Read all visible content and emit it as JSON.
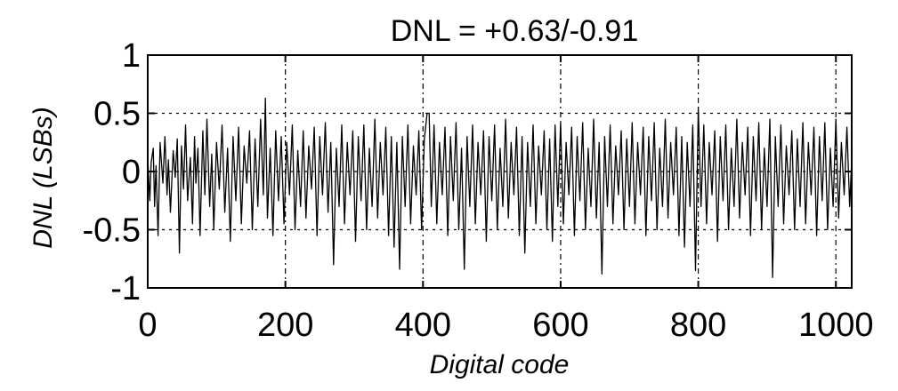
{
  "chart_data": {
    "type": "line",
    "title": "DNL = +0.63/-0.91",
    "xlabel": "Digital code",
    "ylabel": "DNL  (LSBs)",
    "xlim": [
      0,
      1023
    ],
    "ylim": [
      -1,
      1
    ],
    "xticks": [
      0,
      200,
      400,
      600,
      800,
      1000
    ],
    "xtick_labels": [
      "0",
      "200",
      "400",
      "600",
      "800",
      "1000"
    ],
    "yticks": [
      1,
      0.5,
      0,
      -0.5,
      -1
    ],
    "ytick_labels": [
      "1",
      "0.5",
      "0",
      "-0.5",
      "-1"
    ],
    "grid": true,
    "line_color": "#000000",
    "series": [
      {
        "points": [
          [
            0,
            0.12
          ],
          [
            3,
            -0.25
          ],
          [
            5,
            0.08
          ],
          [
            8,
            0.2
          ],
          [
            10,
            -0.3
          ],
          [
            12,
            0.05
          ],
          [
            15,
            -0.55
          ],
          [
            18,
            0.25
          ],
          [
            22,
            -0.1
          ],
          [
            25,
            0.3
          ],
          [
            28,
            -0.2
          ],
          [
            30,
            0.1
          ],
          [
            33,
            -0.35
          ],
          [
            37,
            0.18
          ],
          [
            40,
            -0.05
          ],
          [
            43,
            0.28
          ],
          [
            46,
            -0.7
          ],
          [
            49,
            0.22
          ],
          [
            52,
            -0.15
          ],
          [
            55,
            0.4
          ],
          [
            58,
            -0.25
          ],
          [
            62,
            0.12
          ],
          [
            65,
            -0.45
          ],
          [
            68,
            0.3
          ],
          [
            70,
            -0.1
          ],
          [
            73,
            0.2
          ],
          [
            76,
            -0.55
          ],
          [
            80,
            0.35
          ],
          [
            83,
            -0.2
          ],
          [
            86,
            0.45
          ],
          [
            90,
            -0.3
          ],
          [
            93,
            0.15
          ],
          [
            96,
            -0.5
          ],
          [
            100,
            0.25
          ],
          [
            104,
            -0.15
          ],
          [
            108,
            0.4
          ],
          [
            112,
            -0.35
          ],
          [
            116,
            0.2
          ],
          [
            120,
            -0.6
          ],
          [
            124,
            0.3
          ],
          [
            128,
            -0.25
          ],
          [
            132,
            0.38
          ],
          [
            136,
            -0.45
          ],
          [
            140,
            0.22
          ],
          [
            144,
            -0.1
          ],
          [
            148,
            0.35
          ],
          [
            152,
            -0.5
          ],
          [
            156,
            0.28
          ],
          [
            160,
            -0.3
          ],
          [
            164,
            0.45
          ],
          [
            168,
            -0.2
          ],
          [
            171,
            0.63
          ],
          [
            174,
            -0.4
          ],
          [
            178,
            0.2
          ],
          [
            182,
            -0.55
          ],
          [
            186,
            0.35
          ],
          [
            190,
            -0.25
          ],
          [
            194,
            0.3
          ],
          [
            198,
            -0.45
          ],
          [
            202,
            0.25
          ],
          [
            206,
            -0.2
          ],
          [
            210,
            0.4
          ],
          [
            214,
            -0.5
          ],
          [
            218,
            0.18
          ],
          [
            222,
            -0.3
          ],
          [
            226,
            0.35
          ],
          [
            230,
            -0.4
          ],
          [
            234,
            0.22
          ],
          [
            238,
            -0.15
          ],
          [
            242,
            0.38
          ],
          [
            246,
            -0.55
          ],
          [
            250,
            0.3
          ],
          [
            254,
            -0.2
          ],
          [
            258,
            0.42
          ],
          [
            262,
            -0.35
          ],
          [
            266,
            0.25
          ],
          [
            270,
            -0.8
          ],
          [
            274,
            0.2
          ],
          [
            278,
            -0.3
          ],
          [
            282,
            0.4
          ],
          [
            286,
            -0.45
          ],
          [
            290,
            0.25
          ],
          [
            294,
            -0.2
          ],
          [
            298,
            0.35
          ],
          [
            302,
            -0.6
          ],
          [
            306,
            0.3
          ],
          [
            310,
            -0.25
          ],
          [
            314,
            0.4
          ],
          [
            318,
            -0.5
          ],
          [
            322,
            0.2
          ],
          [
            326,
            -0.3
          ],
          [
            330,
            0.45
          ],
          [
            334,
            -0.4
          ],
          [
            338,
            0.25
          ],
          [
            342,
            -0.2
          ],
          [
            346,
            0.38
          ],
          [
            350,
            -0.55
          ],
          [
            354,
            0.3
          ],
          [
            358,
            -0.65
          ],
          [
            362,
            0.25
          ],
          [
            366,
            -0.84
          ],
          [
            370,
            0.3
          ],
          [
            374,
            -0.3
          ],
          [
            378,
            0.4
          ],
          [
            382,
            -0.45
          ],
          [
            386,
            0.22
          ],
          [
            390,
            -0.2
          ],
          [
            394,
            0.35
          ],
          [
            398,
            -0.5
          ],
          [
            402,
            0.28
          ],
          [
            406,
            0.5
          ],
          [
            409,
            0.5
          ],
          [
            412,
            -0.3
          ],
          [
            416,
            0.4
          ],
          [
            420,
            -0.45
          ],
          [
            424,
            0.25
          ],
          [
            428,
            -0.2
          ],
          [
            432,
            0.38
          ],
          [
            436,
            -0.55
          ],
          [
            440,
            0.3
          ],
          [
            444,
            -0.25
          ],
          [
            448,
            0.42
          ],
          [
            452,
            -0.5
          ],
          [
            456,
            0.2
          ],
          [
            460,
            -0.84
          ],
          [
            464,
            0.3
          ],
          [
            468,
            -0.3
          ],
          [
            472,
            0.4
          ],
          [
            476,
            -0.45
          ],
          [
            480,
            0.25
          ],
          [
            484,
            -0.2
          ],
          [
            488,
            0.35
          ],
          [
            492,
            -0.6
          ],
          [
            496,
            0.3
          ],
          [
            500,
            -0.25
          ],
          [
            504,
            0.4
          ],
          [
            508,
            -0.5
          ],
          [
            512,
            0.2
          ],
          [
            516,
            -0.3
          ],
          [
            520,
            0.45
          ],
          [
            524,
            -0.4
          ],
          [
            528,
            0.25
          ],
          [
            532,
            -0.2
          ],
          [
            536,
            0.38
          ],
          [
            540,
            -0.55
          ],
          [
            544,
            0.3
          ],
          [
            548,
            -0.7
          ],
          [
            552,
            0.25
          ],
          [
            556,
            -0.3
          ],
          [
            560,
            0.4
          ],
          [
            564,
            -0.45
          ],
          [
            568,
            0.22
          ],
          [
            572,
            -0.2
          ],
          [
            576,
            0.35
          ],
          [
            580,
            -0.5
          ],
          [
            584,
            0.28
          ],
          [
            588,
            -0.6
          ],
          [
            592,
            0.4
          ],
          [
            596,
            -0.3
          ],
          [
            600,
            0.42
          ],
          [
            604,
            -0.45
          ],
          [
            608,
            0.25
          ],
          [
            612,
            -0.2
          ],
          [
            616,
            0.38
          ],
          [
            620,
            -0.55
          ],
          [
            624,
            0.3
          ],
          [
            628,
            -0.25
          ],
          [
            632,
            0.42
          ],
          [
            636,
            -0.5
          ],
          [
            640,
            0.2
          ],
          [
            644,
            -0.3
          ],
          [
            648,
            0.45
          ],
          [
            652,
            -0.4
          ],
          [
            656,
            0.25
          ],
          [
            660,
            -0.88
          ],
          [
            664,
            0.3
          ],
          [
            668,
            -0.3
          ],
          [
            672,
            0.4
          ],
          [
            676,
            -0.45
          ],
          [
            680,
            0.22
          ],
          [
            684,
            -0.2
          ],
          [
            688,
            0.35
          ],
          [
            692,
            -0.5
          ],
          [
            696,
            0.28
          ],
          [
            700,
            -0.3
          ],
          [
            704,
            0.42
          ],
          [
            708,
            -0.45
          ],
          [
            712,
            0.25
          ],
          [
            716,
            -0.2
          ],
          [
            720,
            0.38
          ],
          [
            724,
            -0.55
          ],
          [
            728,
            0.3
          ],
          [
            732,
            -0.25
          ],
          [
            736,
            0.42
          ],
          [
            740,
            -0.5
          ],
          [
            744,
            0.2
          ],
          [
            748,
            -0.3
          ],
          [
            752,
            0.45
          ],
          [
            756,
            -0.4
          ],
          [
            760,
            0.25
          ],
          [
            764,
            -0.2
          ],
          [
            768,
            0.38
          ],
          [
            772,
            -0.55
          ],
          [
            776,
            0.3
          ],
          [
            780,
            -0.65
          ],
          [
            784,
            0.25
          ],
          [
            788,
            -0.3
          ],
          [
            792,
            0.4
          ],
          [
            796,
            -0.85
          ],
          [
            800,
            0.55
          ],
          [
            804,
            -0.3
          ],
          [
            808,
            0.4
          ],
          [
            812,
            -0.45
          ],
          [
            816,
            0.25
          ],
          [
            820,
            -0.2
          ],
          [
            824,
            0.35
          ],
          [
            828,
            -0.6
          ],
          [
            832,
            0.3
          ],
          [
            836,
            -0.25
          ],
          [
            840,
            0.4
          ],
          [
            844,
            -0.5
          ],
          [
            848,
            0.2
          ],
          [
            852,
            -0.3
          ],
          [
            856,
            0.45
          ],
          [
            860,
            -0.4
          ],
          [
            864,
            0.25
          ],
          [
            868,
            -0.2
          ],
          [
            872,
            0.38
          ],
          [
            876,
            -0.55
          ],
          [
            880,
            0.3
          ],
          [
            884,
            -0.25
          ],
          [
            888,
            0.42
          ],
          [
            892,
            -0.5
          ],
          [
            896,
            0.2
          ],
          [
            900,
            -0.3
          ],
          [
            904,
            0.45
          ],
          [
            908,
            -0.91
          ],
          [
            912,
            0.3
          ],
          [
            916,
            -0.3
          ],
          [
            920,
            0.4
          ],
          [
            924,
            -0.45
          ],
          [
            928,
            0.22
          ],
          [
            932,
            -0.2
          ],
          [
            936,
            0.35
          ],
          [
            940,
            -0.5
          ],
          [
            944,
            0.28
          ],
          [
            948,
            -0.3
          ],
          [
            952,
            0.42
          ],
          [
            956,
            -0.45
          ],
          [
            960,
            0.25
          ],
          [
            964,
            -0.2
          ],
          [
            968,
            0.38
          ],
          [
            972,
            -0.55
          ],
          [
            976,
            0.3
          ],
          [
            980,
            -0.25
          ],
          [
            984,
            0.42
          ],
          [
            988,
            -0.5
          ],
          [
            992,
            0.2
          ],
          [
            996,
            -0.3
          ],
          [
            1000,
            0.45
          ],
          [
            1004,
            -0.4
          ],
          [
            1008,
            0.25
          ],
          [
            1012,
            -0.2
          ],
          [
            1016,
            0.38
          ],
          [
            1020,
            -0.3
          ],
          [
            1023,
            0.1
          ]
        ]
      }
    ]
  }
}
